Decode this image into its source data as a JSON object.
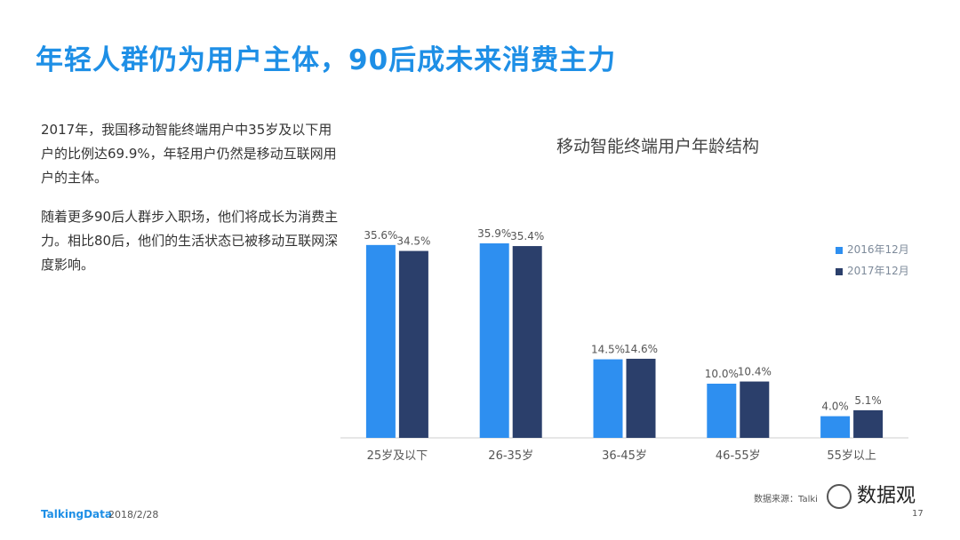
{
  "slide": {
    "title": "年轻人群仍为用户主体，90后成未来消费主力",
    "paragraph1": "2017年，我国移动智能终端用户中35岁及以下用户的比例达69.9%，年轻用户仍然是移动互联网用户的主体。",
    "paragraph2": "随着更多90后人群步入职场，他们将成长为消费主力。相比80后，他们的生活状态已被移动互联网深度影响。"
  },
  "footer": {
    "logo": "TalkingData",
    "date": "2018/2/28",
    "source": "数据来源：Talki",
    "page": "17",
    "watermark": "数据观"
  },
  "colors": {
    "title": "#1e8fe6",
    "series_2016": "#2e8ff0",
    "series_2017": "#2b3f6b"
  },
  "chart_data": {
    "type": "bar",
    "title": "移动智能终端用户年龄结构",
    "categories": [
      "25岁及以下",
      "26-35岁",
      "36-45岁",
      "46-55岁",
      "55岁以上"
    ],
    "series": [
      {
        "name": "2016年12月",
        "values": [
          35.6,
          35.9,
          14.5,
          10.0,
          4.0
        ],
        "labels": [
          "35.6%",
          "35.9%",
          "14.5%",
          "10.0%",
          "4.0%"
        ]
      },
      {
        "name": "2017年12月",
        "values": [
          34.5,
          35.4,
          14.6,
          10.4,
          5.1
        ],
        "labels": [
          "34.5%",
          "35.4%",
          "14.6%",
          "10.4%",
          "5.1%"
        ]
      }
    ],
    "ylim": [
      0,
      40
    ],
    "legend": "right",
    "grid": false
  }
}
